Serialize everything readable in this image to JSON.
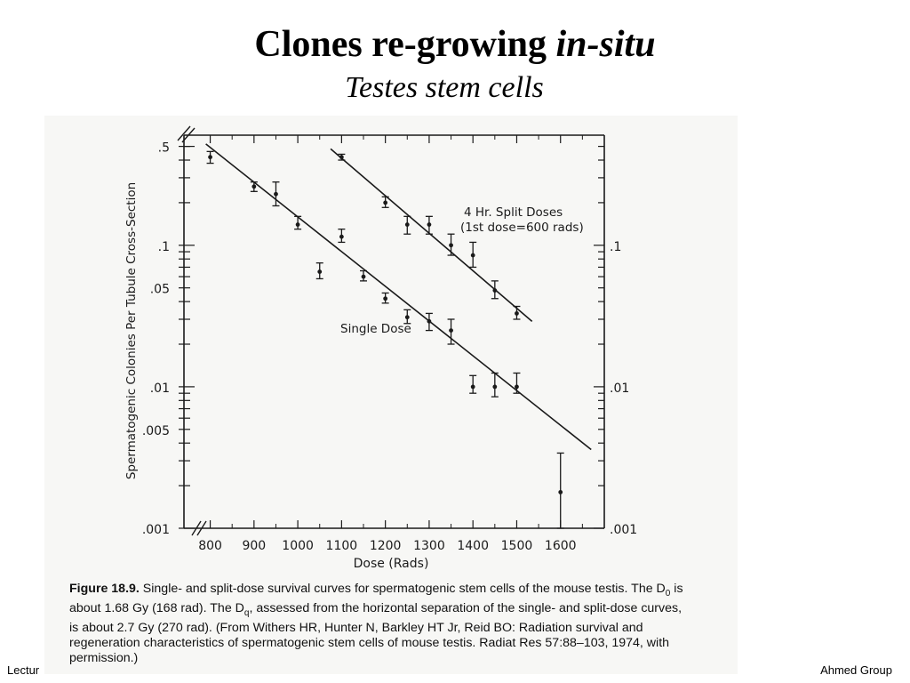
{
  "slide": {
    "title_main": "Clones re-growing",
    "title_italic": "in-situ",
    "subtitle": "Testes stem cells",
    "footer_left": "Lectur",
    "footer_right": "Ahmed Group"
  },
  "caption": {
    "label": "Figure 18.9.",
    "part1": " Single- and split-dose survival curves for spermatogenic stem cells of the mouse testis. The D",
    "sub0": "0",
    "part2": " is about 1.68 Gy (168 rad). The D",
    "subq": "q",
    "part3": ", assessed from the horizontal separation of the single- and split-dose curves, is about 2.7 Gy (270 rad). (From Withers HR, Hunter N, Barkley HT Jr, Reid BO: Radiation survival and regeneration characteristics of spermatogenic stem cells of mouse testis. Radiat Res 57:88–103, 1974, with permission.)"
  },
  "chart_data": {
    "type": "scatter",
    "xlabel": "Dose (Rads)",
    "ylabel": "Spermatogenic Colonies Per Tubule Cross-Section",
    "x_ticks": [
      "800",
      "900",
      "1000",
      "1100",
      "1200",
      "1300",
      "1400",
      "1500",
      "1600"
    ],
    "y_ticks_left": [
      ".5",
      ".1",
      ".05",
      ".01",
      ".005",
      ".001"
    ],
    "y_ticks_right": [
      ".1",
      ".01",
      ".001"
    ],
    "xlim": [
      740,
      1700
    ],
    "ylim": [
      0.001,
      0.6
    ],
    "y_scale": "log",
    "series": [
      {
        "name": "Single Dose",
        "points": [
          {
            "x": 800,
            "y": 0.42,
            "lo": 0.38,
            "hi": 0.46
          },
          {
            "x": 900,
            "y": 0.26,
            "lo": 0.24,
            "hi": 0.28
          },
          {
            "x": 950,
            "y": 0.23,
            "lo": 0.19,
            "hi": 0.28
          },
          {
            "x": 1000,
            "y": 0.14,
            "lo": 0.13,
            "hi": 0.16
          },
          {
            "x": 1050,
            "y": 0.065,
            "lo": 0.058,
            "hi": 0.075
          },
          {
            "x": 1100,
            "y": 0.115,
            "lo": 0.105,
            "hi": 0.13
          },
          {
            "x": 1150,
            "y": 0.06,
            "lo": 0.056,
            "hi": 0.066
          },
          {
            "x": 1200,
            "y": 0.042,
            "lo": 0.039,
            "hi": 0.046
          },
          {
            "x": 1250,
            "y": 0.031,
            "lo": 0.028,
            "hi": 0.035
          },
          {
            "x": 1300,
            "y": 0.029,
            "lo": 0.025,
            "hi": 0.033
          },
          {
            "x": 1350,
            "y": 0.025,
            "lo": 0.02,
            "hi": 0.03
          },
          {
            "x": 1400,
            "y": 0.01,
            "lo": 0.009,
            "hi": 0.012
          },
          {
            "x": 1450,
            "y": 0.01,
            "lo": 0.0085,
            "hi": 0.0125
          },
          {
            "x": 1500,
            "y": 0.01,
            "lo": 0.009,
            "hi": 0.0125
          },
          {
            "x": 1600,
            "y": 0.0018,
            "lo": 0.001,
            "hi": 0.0034
          }
        ],
        "fit": [
          [
            790,
            0.52
          ],
          [
            1670,
            0.0036
          ]
        ]
      },
      {
        "name": "4 Hr. Split Doses (1st dose=600 rads)",
        "points": [
          {
            "x": 1100,
            "y": 0.42,
            "lo": 0.4,
            "hi": 0.44
          },
          {
            "x": 1200,
            "y": 0.2,
            "lo": 0.185,
            "hi": 0.22
          },
          {
            "x": 1250,
            "y": 0.14,
            "lo": 0.12,
            "hi": 0.16
          },
          {
            "x": 1300,
            "y": 0.14,
            "lo": 0.12,
            "hi": 0.16
          },
          {
            "x": 1350,
            "y": 0.1,
            "lo": 0.085,
            "hi": 0.12
          },
          {
            "x": 1400,
            "y": 0.085,
            "lo": 0.07,
            "hi": 0.105
          },
          {
            "x": 1450,
            "y": 0.048,
            "lo": 0.042,
            "hi": 0.056
          },
          {
            "x": 1500,
            "y": 0.033,
            "lo": 0.03,
            "hi": 0.037
          }
        ],
        "fit": [
          [
            1075,
            0.48
          ],
          [
            1535,
            0.029
          ]
        ]
      }
    ]
  }
}
